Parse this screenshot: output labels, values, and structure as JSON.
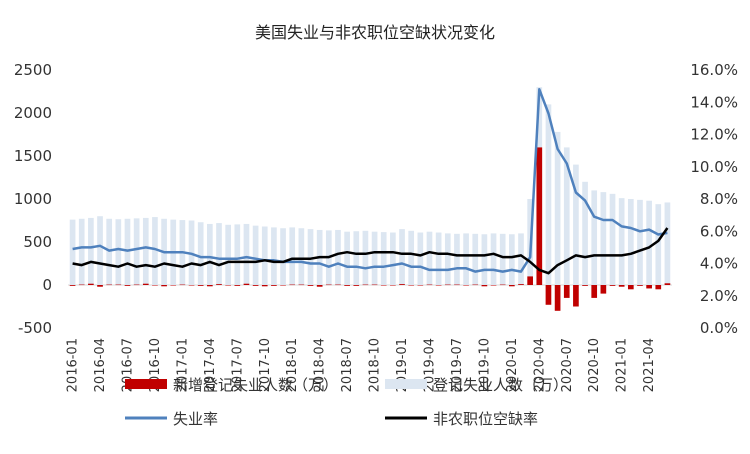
{
  "chart_data": {
    "type": "bar+line",
    "title": "美国失业与非农职位空缺状况变化",
    "x": [
      "2016-01",
      "2016-02",
      "2016-03",
      "2016-04",
      "2016-05",
      "2016-06",
      "2016-07",
      "2016-08",
      "2016-09",
      "2016-10",
      "2016-11",
      "2016-12",
      "2017-01",
      "2017-02",
      "2017-03",
      "2017-04",
      "2017-05",
      "2017-06",
      "2017-07",
      "2017-08",
      "2017-09",
      "2017-10",
      "2017-11",
      "2017-12",
      "2018-01",
      "2018-02",
      "2018-03",
      "2018-04",
      "2018-05",
      "2018-06",
      "2018-07",
      "2018-08",
      "2018-09",
      "2018-10",
      "2018-11",
      "2018-12",
      "2019-01",
      "2019-02",
      "2019-03",
      "2019-04",
      "2019-05",
      "2019-06",
      "2019-07",
      "2019-08",
      "2019-09",
      "2019-10",
      "2019-11",
      "2019-12",
      "2020-01",
      "2020-02",
      "2020-03",
      "2020-04",
      "2020-05",
      "2020-06",
      "2020-07",
      "2020-08",
      "2020-09",
      "2020-10",
      "2020-11",
      "2020-12",
      "2021-01",
      "2021-02",
      "2021-03",
      "2021-04",
      "2021-05",
      "2021-06"
    ],
    "x_tick_labels": [
      "2016-01",
      "2016-04",
      "2016-07",
      "2016-10",
      "2017-01",
      "2017-04",
      "2017-07",
      "2017-10",
      "2018-01",
      "2018-04",
      "2018-07",
      "2018-10",
      "2019-01",
      "2019-04",
      "2019-07",
      "2019-10",
      "2020-01",
      "2020-04",
      "2020-07",
      "2020-10",
      "2021-01",
      "2021-04"
    ],
    "y_left": {
      "min": -500,
      "max": 2500,
      "ticks": [
        "-500",
        "0",
        "500",
        "1000",
        "1500",
        "2000",
        "2500"
      ]
    },
    "y_right": {
      "min": 0,
      "max": 16,
      "ticks": [
        "0.0%",
        "2.0%",
        "4.0%",
        "6.0%",
        "8.0%",
        "10.0%",
        "12.0%",
        "14.0%",
        "16.0%"
      ]
    },
    "series": [
      {
        "name": "新增登记失业人数（万）",
        "kind": "bar",
        "axis": "left",
        "color": "#c00000",
        "values": [
          -10,
          5,
          15,
          -20,
          5,
          5,
          -10,
          5,
          15,
          -5,
          -15,
          -5,
          5,
          -5,
          -10,
          -15,
          10,
          -5,
          -10,
          15,
          -10,
          -15,
          -10,
          -5,
          5,
          5,
          -10,
          -20,
          5,
          5,
          -10,
          -10,
          5,
          5,
          -5,
          -5,
          10,
          -5,
          -5,
          5,
          -5,
          5,
          5,
          -5,
          5,
          -15,
          -5,
          5,
          -15,
          10,
          100,
          1600,
          -230,
          -300,
          -150,
          -250,
          -10,
          -150,
          -100,
          -10,
          -20,
          -50,
          -10,
          -40,
          -50,
          20
        ]
      },
      {
        "name": "登记失业人数（万）",
        "kind": "bar",
        "axis": "left",
        "color": "#dce6f1",
        "values": [
          760,
          770,
          780,
          800,
          770,
          765,
          770,
          775,
          780,
          790,
          770,
          760,
          755,
          750,
          730,
          710,
          720,
          700,
          705,
          710,
          690,
          680,
          670,
          660,
          670,
          660,
          650,
          640,
          635,
          640,
          620,
          625,
          630,
          620,
          615,
          610,
          650,
          630,
          610,
          620,
          610,
          600,
          595,
          600,
          595,
          590,
          600,
          595,
          590,
          600,
          1000,
          2300,
          2100,
          1780,
          1600,
          1400,
          1200,
          1100,
          1080,
          1060,
          1010,
          1000,
          990,
          980,
          940,
          960
        ]
      },
      {
        "name": "失业率",
        "kind": "line",
        "axis": "right",
        "color": "#4f81bd",
        "values": [
          4.9,
          5.0,
          5.0,
          5.1,
          4.8,
          4.9,
          4.8,
          4.9,
          5.0,
          4.9,
          4.7,
          4.7,
          4.7,
          4.6,
          4.4,
          4.4,
          4.3,
          4.3,
          4.3,
          4.4,
          4.3,
          4.2,
          4.2,
          4.1,
          4.1,
          4.1,
          4.0,
          4.0,
          3.8,
          4.0,
          3.8,
          3.8,
          3.7,
          3.8,
          3.8,
          3.9,
          4.0,
          3.8,
          3.8,
          3.6,
          3.6,
          3.6,
          3.7,
          3.7,
          3.5,
          3.6,
          3.6,
          3.5,
          3.6,
          3.5,
          4.4,
          14.8,
          13.3,
          11.1,
          10.2,
          8.4,
          7.9,
          6.9,
          6.7,
          6.7,
          6.3,
          6.2,
          6.0,
          6.1,
          5.8,
          5.9
        ]
      },
      {
        "name": "非农职位空缺率",
        "kind": "line",
        "axis": "right",
        "color": "#000000",
        "values": [
          4.0,
          3.9,
          4.1,
          4.0,
          3.9,
          3.8,
          4.0,
          3.8,
          3.9,
          3.8,
          4.0,
          3.9,
          3.8,
          4.0,
          3.9,
          4.1,
          3.9,
          4.1,
          4.1,
          4.1,
          4.1,
          4.2,
          4.1,
          4.1,
          4.3,
          4.3,
          4.3,
          4.4,
          4.4,
          4.6,
          4.7,
          4.6,
          4.6,
          4.7,
          4.7,
          4.7,
          4.6,
          4.6,
          4.5,
          4.7,
          4.6,
          4.6,
          4.5,
          4.5,
          4.5,
          4.5,
          4.6,
          4.4,
          4.4,
          4.5,
          4.1,
          3.6,
          3.4,
          3.9,
          4.2,
          4.5,
          4.4,
          4.5,
          4.5,
          4.5,
          4.5,
          4.6,
          4.8,
          5.0,
          5.4,
          6.2
        ]
      }
    ],
    "legend": {
      "position": "bottom"
    }
  }
}
